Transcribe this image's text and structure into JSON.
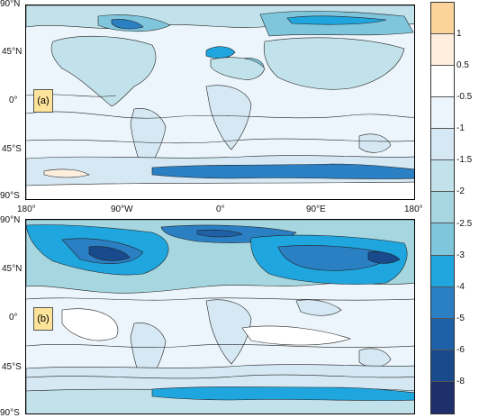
{
  "panels": [
    {
      "tag": "(a)"
    },
    {
      "tag": "(b)"
    }
  ],
  "lat_labels": [
    "90°N",
    "45°N",
    "0°",
    "45°S",
    "90°S"
  ],
  "lon_labels": [
    "180°",
    "90°W",
    "0°",
    "90°E",
    "180°"
  ],
  "colorbar": {
    "labels": [
      "1",
      "0.5",
      "-0.5",
      "-1",
      "-1.5",
      "-2",
      "-2.5",
      "-3",
      "-4",
      "-5",
      "-6",
      "-8"
    ],
    "colors": [
      "#fbd39b",
      "#fdeede",
      "#ffffff",
      "#ecf5fb",
      "#d6e8f3",
      "#c1e2ea",
      "#a6d7e0",
      "#7fc6dd",
      "#1fa6df",
      "#2b7fc3",
      "#1e61a6",
      "#184a8c",
      "#1f2f6b"
    ]
  }
}
